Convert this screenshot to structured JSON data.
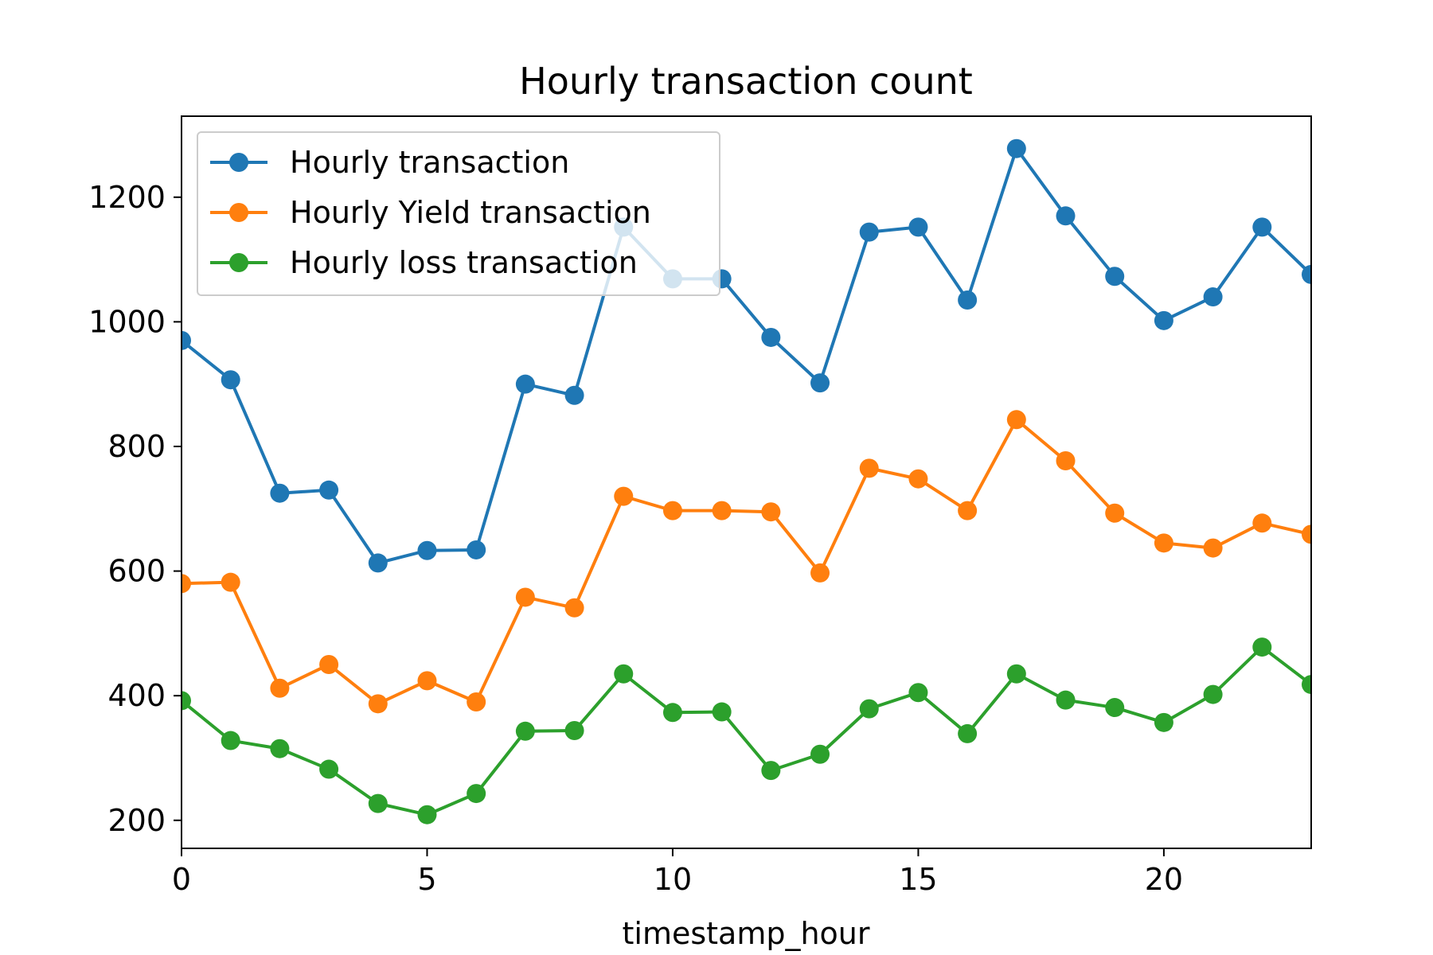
{
  "chart_data": {
    "type": "line",
    "title": "Hourly transaction count",
    "xlabel": "timestamp_hour",
    "ylabel": "",
    "xlim": [
      0,
      23
    ],
    "ylim": [
      155,
      1330
    ],
    "xticks": [
      0,
      5,
      10,
      15,
      20
    ],
    "yticks": [
      200,
      400,
      600,
      800,
      1000,
      1200
    ],
    "grid": false,
    "legend_position": "top-left",
    "x": [
      0,
      1,
      2,
      3,
      4,
      5,
      6,
      7,
      8,
      9,
      10,
      11,
      12,
      13,
      14,
      15,
      16,
      17,
      18,
      19,
      20,
      21,
      22,
      23
    ],
    "series": [
      {
        "name": "Hourly transaction",
        "color": "#1f77b4",
        "values": [
          970,
          907,
          725,
          730,
          613,
          633,
          634,
          900,
          882,
          1152,
          1069,
          1069,
          975,
          902,
          1144,
          1152,
          1035,
          1278,
          1170,
          1073,
          1002,
          1040,
          1152,
          1076
        ]
      },
      {
        "name": "Hourly Yield transaction",
        "color": "#ff7f0e",
        "values": [
          580,
          582,
          412,
          450,
          387,
          424,
          390,
          558,
          541,
          720,
          697,
          697,
          695,
          597,
          765,
          748,
          697,
          843,
          777,
          693,
          645,
          637,
          677,
          659
        ]
      },
      {
        "name": "Hourly loss transaction",
        "color": "#2ca02c",
        "values": [
          392,
          328,
          315,
          282,
          227,
          209,
          243,
          343,
          344,
          435,
          373,
          374,
          280,
          306,
          379,
          405,
          339,
          435,
          393,
          381,
          357,
          402,
          478,
          418
        ]
      }
    ]
  }
}
